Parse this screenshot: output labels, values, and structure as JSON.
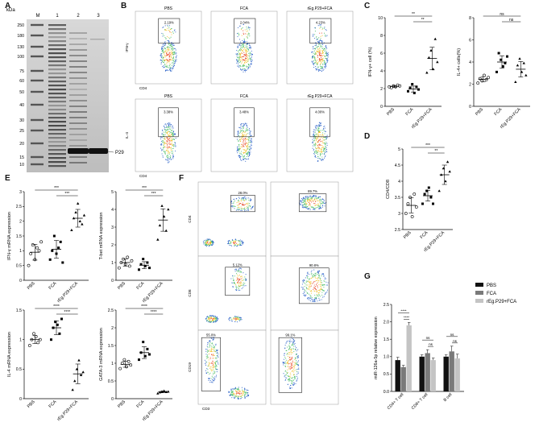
{
  "panels": {
    "A": {
      "letter": "A",
      "kda_label": "kDa",
      "lanes": [
        "M",
        "1",
        "2",
        "3"
      ],
      "markers": [
        "250",
        "180",
        "130",
        "100",
        "75",
        "60",
        "50",
        "40",
        "30",
        "25",
        "20",
        "15",
        "10"
      ],
      "band_label": "P29"
    },
    "B": {
      "letter": "B",
      "groups": [
        "PBS",
        "FCA",
        "rEg.P29+FCA"
      ],
      "ifn_row": {
        "ylabel": "IFN-γ",
        "xlabel": "CD4",
        "percents": [
          "2.19%",
          "2.04%",
          "4.23%"
        ]
      },
      "il4_row": {
        "ylabel": "IL-4",
        "xlabel": "CD4",
        "percents": [
          "3.38%",
          "3.48%",
          "4.00%"
        ]
      }
    },
    "C": {
      "letter": "C"
    },
    "D": {
      "letter": "D"
    },
    "E": {
      "letter": "E"
    },
    "F": {
      "letter": "F",
      "rows": [
        {
          "ylabel": "CD4",
          "xlabel": "CD3",
          "percents": [
            "28.0%",
            "89.7%"
          ]
        },
        {
          "ylabel": "CD8",
          "xlabel": "CD3",
          "percents": [
            "5.12%",
            "90.8%"
          ]
        },
        {
          "ylabel": "CD19",
          "xlabel": "CD3",
          "percents": [
            "55.0%",
            "99.1%"
          ]
        }
      ]
    },
    "G": {
      "letter": "G"
    }
  },
  "colors": {
    "pbs": "#111111",
    "fca": "#7a7a7a",
    "rep29": "#c4c4c4"
  },
  "chart_data": [
    {
      "id": "C1",
      "type": "scatter",
      "categories": [
        "PBS",
        "FCA",
        "rEg.P29+FCA"
      ],
      "ylabel": "IFN-γ+ cell (%)",
      "ylim": [
        0,
        10
      ],
      "yticks": [
        0,
        2,
        4,
        6,
        8,
        10
      ],
      "points": [
        [
          2.2,
          2.1,
          2.3,
          2.2,
          2.4,
          2.3
        ],
        [
          1.7,
          2.1,
          2.5,
          1.5,
          2.2,
          1.9
        ],
        [
          3.8,
          5.5,
          6.3,
          4.2,
          7.6,
          5.0
        ]
      ],
      "means": [
        2.25,
        1.95,
        5.4
      ],
      "significance": [
        {
          "pair": [
            "PBS",
            "rEg.P29+FCA"
          ],
          "label": "**"
        },
        {
          "pair": [
            "FCA",
            "rEg.P29+FCA"
          ],
          "label": "**"
        }
      ]
    },
    {
      "id": "C2",
      "type": "scatter",
      "categories": [
        "PBS",
        "FCA",
        "rEg.P29+FCA"
      ],
      "ylabel": "IL-4+ cells(%)",
      "ylim": [
        0,
        8
      ],
      "yticks": [
        0,
        2,
        4,
        6,
        8
      ],
      "points": [
        [
          2.1,
          2.5,
          2.3,
          2.8,
          2.4,
          2.6
        ],
        [
          3.1,
          4.8,
          4.2,
          3.6,
          3.9,
          4.5
        ],
        [
          2.2,
          3.7,
          4.3,
          3.1,
          3.9,
          2.8
        ]
      ],
      "means": [
        2.45,
        4.0,
        3.35
      ],
      "significance": [
        {
          "pair": [
            "PBS",
            "rEg.P29+FCA"
          ],
          "label": "ns"
        },
        {
          "pair": [
            "FCA",
            "rEg.P29+FCA"
          ],
          "label": "ns"
        }
      ]
    },
    {
      "id": "D",
      "type": "scatter",
      "categories": [
        "PBS",
        "FCA",
        "rEg.P29+FCA"
      ],
      "ylabel": "CD4/CD8",
      "ylim": [
        2.5,
        5.0
      ],
      "yticks": [
        2.5,
        3.0,
        3.5,
        4.0,
        4.5,
        5.0
      ],
      "points": [
        [
          3.0,
          3.3,
          3.5,
          2.9,
          3.6,
          3.2
        ],
        [
          3.3,
          3.6,
          3.7,
          3.8,
          3.5,
          3.3
        ],
        [
          3.7,
          4.2,
          4.4,
          4.0,
          4.6,
          4.3
        ]
      ],
      "means": [
        3.25,
        3.55,
        4.2
      ],
      "significance": [
        {
          "pair": [
            "PBS",
            "rEg.P29+FCA"
          ],
          "label": "***"
        },
        {
          "pair": [
            "FCA",
            "rEg.P29+FCA"
          ],
          "label": "**"
        }
      ]
    },
    {
      "id": "E1",
      "type": "scatter",
      "categories": [
        "PBS",
        "FCA",
        "rEg.P29+FCA"
      ],
      "ylabel": "IFN-γ mRNA expression",
      "ylim": [
        0,
        3
      ],
      "yticks": [
        0,
        0.5,
        1.0,
        1.5,
        2.0,
        2.5,
        3.0
      ],
      "points": [
        [
          0.5,
          0.9,
          1.2,
          0.7,
          1.1,
          1.0,
          1.3
        ],
        [
          0.7,
          1.0,
          1.5,
          0.9,
          1.1,
          1.3,
          0.6
        ],
        [
          1.7,
          2.1,
          2.3,
          2.6,
          2.0,
          1.9,
          2.2
        ]
      ],
      "means": [
        0.95,
        1.05,
        2.1
      ],
      "significance": [
        {
          "pair": [
            "PBS",
            "rEg.P29+FCA"
          ],
          "label": "***"
        },
        {
          "pair": [
            "FCA",
            "rEg.P29+FCA"
          ],
          "label": "***"
        }
      ]
    },
    {
      "id": "E2",
      "type": "scatter",
      "categories": [
        "PBS",
        "FCA",
        "rEg.P29+FCA"
      ],
      "ylabel": "T-bet mRNA expression",
      "ylim": [
        0,
        5
      ],
      "yticks": [
        0,
        1,
        2,
        3,
        4,
        5
      ],
      "points": [
        [
          0.7,
          1.0,
          1.2,
          0.9,
          1.3,
          0.8,
          1.1
        ],
        [
          0.6,
          0.9,
          1.2,
          0.8,
          1.0,
          0.7
        ],
        [
          2.3,
          3.1,
          4.2,
          3.6,
          2.8,
          4.0
        ]
      ],
      "means": [
        1.0,
        0.85,
        3.4
      ],
      "significance": [
        {
          "pair": [
            "PBS",
            "rEg.P29+FCA"
          ],
          "label": "***"
        },
        {
          "pair": [
            "FCA",
            "rEg.P29+FCA"
          ],
          "label": "***"
        }
      ]
    },
    {
      "id": "E3",
      "type": "scatter",
      "categories": [
        "PBS",
        "FCA",
        "rEg.P29+FCA"
      ],
      "ylabel": "IL-4 mRNA expression",
      "ylim": [
        0,
        1.5
      ],
      "yticks": [
        0,
        0.5,
        1.0,
        1.5
      ],
      "points": [
        [
          0.9,
          1.0,
          1.1,
          1.05,
          0.95,
          1.0
        ],
        [
          1.0,
          1.2,
          1.3,
          1.25,
          1.1,
          1.35
        ],
        [
          0.15,
          0.3,
          0.5,
          0.65,
          0.4,
          0.45
        ]
      ],
      "means": [
        1.0,
        1.2,
        0.42
      ],
      "significance": [
        {
          "pair": [
            "PBS",
            "rEg.P29+FCA"
          ],
          "label": "****"
        },
        {
          "pair": [
            "FCA",
            "rEg.P29+FCA"
          ],
          "label": "****"
        }
      ]
    },
    {
      "id": "E4",
      "type": "scatter",
      "categories": [
        "PBS",
        "FCA",
        "rEg.P29+FCA"
      ],
      "ylabel": "GATA-3 mRNA expression",
      "ylim": [
        0,
        2.5
      ],
      "yticks": [
        0,
        0.5,
        1.0,
        1.5,
        2.0,
        2.5
      ],
      "points": [
        [
          0.85,
          1.0,
          1.1,
          0.9,
          1.05,
          0.95
        ],
        [
          1.1,
          1.3,
          1.6,
          1.2,
          1.4,
          1.25
        ],
        [
          0.15,
          0.18,
          0.2,
          0.22,
          0.19,
          0.2
        ]
      ],
      "means": [
        0.97,
        1.3,
        0.19
      ],
      "significance": [
        {
          "pair": [
            "PBS",
            "rEg.P29+FCA"
          ],
          "label": "****"
        },
        {
          "pair": [
            "FCA",
            "rEg.P29+FCA"
          ],
          "label": "****"
        }
      ]
    },
    {
      "id": "G",
      "type": "bar",
      "categories": [
        "CD4+ T cell",
        "CD8+ T cell",
        "B cell"
      ],
      "ylabel": "miR-126a-5p relative expression",
      "ylim": [
        0,
        2.5
      ],
      "yticks": [
        0.0,
        0.5,
        1.0,
        1.5,
        2.0,
        2.5
      ],
      "series": [
        {
          "name": "PBS",
          "values": [
            0.9,
            1.0,
            1.0
          ],
          "errors": [
            0.08,
            0.05,
            0.05
          ]
        },
        {
          "name": "FCA",
          "values": [
            0.7,
            1.1,
            1.15
          ],
          "errors": [
            0.05,
            0.1,
            0.15
          ]
        },
        {
          "name": "rEg.P29+FCA",
          "values": [
            1.9,
            0.9,
            0.95
          ],
          "errors": [
            0.08,
            0.06,
            0.12
          ]
        }
      ],
      "legend": "top-right",
      "significance": [
        {
          "category": "CD4+ T cell",
          "pair": [
            "PBS",
            "rEg.P29+FCA"
          ],
          "label": "****"
        },
        {
          "category": "CD4+ T cell",
          "pair": [
            "FCA",
            "rEg.P29+FCA"
          ],
          "label": "****"
        },
        {
          "category": "CD8+ T cell",
          "pair": [
            "PBS",
            "rEg.P29+FCA"
          ],
          "label": "ns"
        },
        {
          "category": "CD8+ T cell",
          "pair": [
            "FCA",
            "rEg.P29+FCA"
          ],
          "label": "ns"
        },
        {
          "category": "B cell",
          "pair": [
            "PBS",
            "rEg.P29+FCA"
          ],
          "label": "ns"
        },
        {
          "category": "B cell",
          "pair": [
            "FCA",
            "rEg.P29+FCA"
          ],
          "label": "ns"
        }
      ]
    }
  ]
}
